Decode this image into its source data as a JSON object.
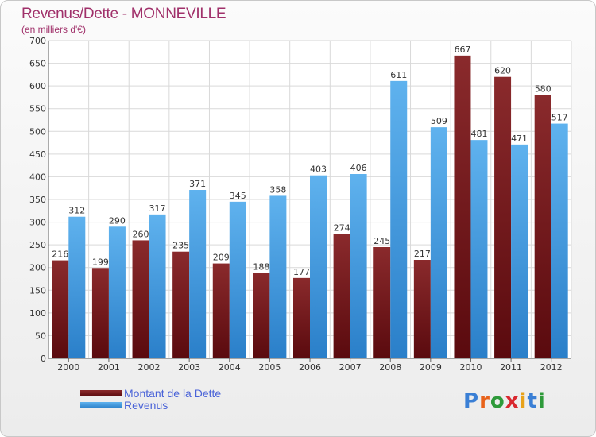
{
  "header": {
    "title": "Revenus/Dette - MONNEVILLE",
    "subtitle": "(en milliers d'€)"
  },
  "logo": {
    "text": "Proxiti"
  },
  "chart_data": {
    "type": "bar",
    "categories": [
      "2000",
      "2001",
      "2002",
      "2003",
      "2004",
      "2005",
      "2006",
      "2007",
      "2008",
      "2009",
      "2010",
      "2011",
      "2012"
    ],
    "series": [
      {
        "name": "Montant de la Dette",
        "color": "#6e0e12",
        "values": [
          216,
          199,
          260,
          235,
          209,
          188,
          177,
          274,
          245,
          217,
          667,
          620,
          580
        ]
      },
      {
        "name": "Revenus",
        "color": "#2f8fde",
        "values": [
          312,
          290,
          317,
          371,
          345,
          358,
          403,
          406,
          611,
          509,
          481,
          471,
          517
        ]
      }
    ],
    "ylim": [
      0,
      700
    ],
    "yticks": [
      0,
      50,
      100,
      150,
      200,
      250,
      300,
      350,
      400,
      450,
      500,
      550,
      600,
      650,
      700
    ],
    "grid": true,
    "legend_position": "bottom-left"
  }
}
